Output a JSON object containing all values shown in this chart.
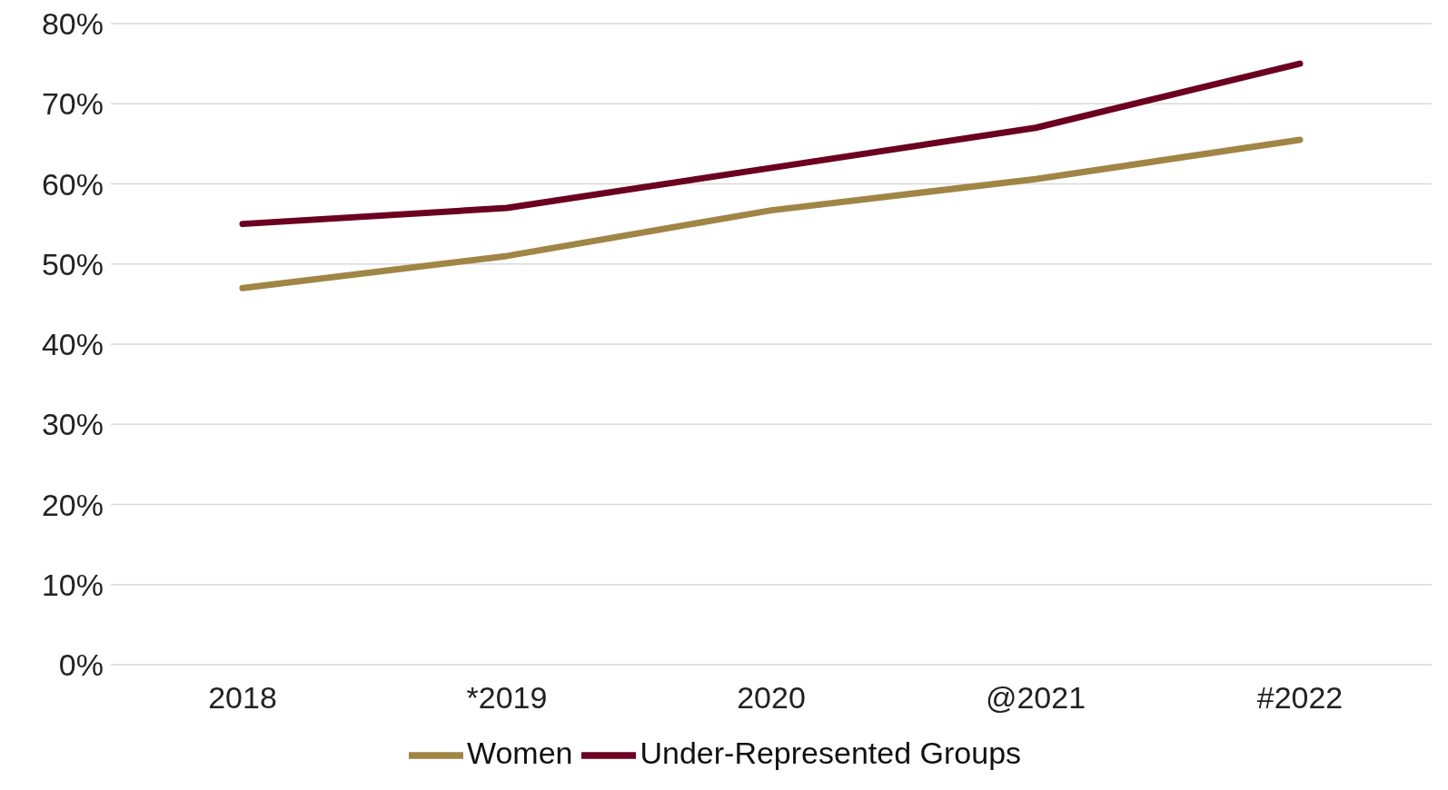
{
  "chart_data": {
    "type": "line",
    "categories": [
      "2018",
      "*2019",
      "2020",
      "@2021",
      "#2022"
    ],
    "series": [
      {
        "name": "Women",
        "color": "#a08545",
        "values": [
          47,
          51,
          56.7,
          60.6,
          65.5
        ]
      },
      {
        "name": "Under-Represented Groups",
        "color": "#6b0020",
        "values": [
          55,
          57,
          62,
          67,
          75
        ]
      }
    ],
    "ylim": [
      0,
      80
    ],
    "yticks": [
      {
        "value": 0,
        "label": "0%"
      },
      {
        "value": 10,
        "label": "10%"
      },
      {
        "value": 20,
        "label": "20%"
      },
      {
        "value": 30,
        "label": "30%"
      },
      {
        "value": 40,
        "label": "40%"
      },
      {
        "value": 50,
        "label": "50%"
      },
      {
        "value": 60,
        "label": "60%"
      },
      {
        "value": 70,
        "label": "70%"
      },
      {
        "value": 80,
        "label": "80%"
      }
    ],
    "grid": "y",
    "legend": "bottom",
    "marker": "none",
    "line_style": "solid"
  }
}
